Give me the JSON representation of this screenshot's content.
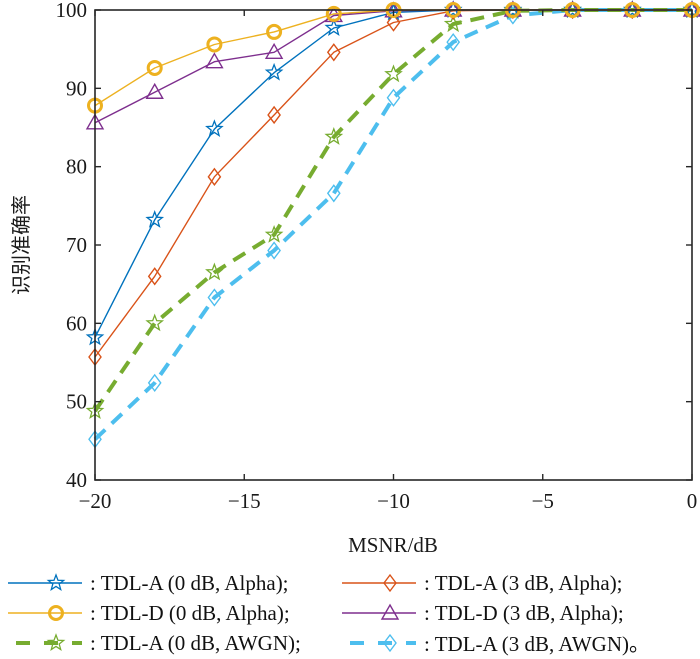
{
  "chart_data": {
    "type": "line",
    "title": "",
    "xlabel": "MSNR/dB",
    "ylabel": "识别准确率",
    "xlim": [
      -20,
      0
    ],
    "ylim": [
      40,
      100
    ],
    "xticks": [
      -20,
      -15,
      -10,
      -5,
      0
    ],
    "xtick_labels": [
      "−20",
      "−15",
      "−10",
      "−5",
      "0"
    ],
    "yticks": [
      40,
      50,
      60,
      70,
      80,
      90,
      100
    ],
    "ytick_labels": [
      "40",
      "50",
      "60",
      "70",
      "80",
      "90",
      "100"
    ],
    "grid": false,
    "legend_position": "below",
    "x": [
      -20,
      -18,
      -16,
      -14,
      -12,
      -10,
      -8,
      -6,
      -4,
      -2,
      0
    ],
    "series": [
      {
        "name": ": TDL-A (0 dB, Alpha);",
        "color": "#0072BD",
        "marker": "star",
        "dash": "solid",
        "values": [
          58.2,
          73.2,
          84.8,
          92.0,
          97.7,
          99.7,
          100,
          100,
          100,
          100,
          100
        ]
      },
      {
        "name": ": TDL-A (3 dB, Alpha);",
        "color": "#D95319",
        "marker": "diamond",
        "dash": "solid",
        "values": [
          55.7,
          66.0,
          78.7,
          86.6,
          94.6,
          98.4,
          99.9,
          100,
          100,
          100,
          100
        ]
      },
      {
        "name": ": TDL-D (0 dB, Alpha);",
        "color": "#EDB120",
        "marker": "circle",
        "dash": "solid",
        "values": [
          87.8,
          92.6,
          95.6,
          97.2,
          99.5,
          100,
          100,
          100,
          100,
          100,
          100
        ]
      },
      {
        "name": ": TDL-D (3 dB, Alpha);",
        "color": "#7E2F8E",
        "marker": "triangle",
        "dash": "solid",
        "values": [
          85.6,
          89.5,
          93.4,
          94.6,
          99.3,
          99.9,
          100,
          100,
          100,
          100,
          100
        ]
      },
      {
        "name": ": TDL-A (0 dB, AWGN);",
        "color": "#77AC30",
        "marker": "star",
        "dash": "dashed",
        "values": [
          48.8,
          60.0,
          66.5,
          71.3,
          83.8,
          91.8,
          98.2,
          99.9,
          100,
          100,
          100
        ]
      },
      {
        "name": ": TDL-A (3 dB, AWGN)。",
        "color": "#4DBEEE",
        "marker": "diamond",
        "dash": "dashed",
        "values": [
          45.2,
          52.4,
          63.3,
          69.3,
          76.6,
          88.8,
          95.9,
          99.3,
          100,
          100,
          100
        ]
      }
    ]
  }
}
